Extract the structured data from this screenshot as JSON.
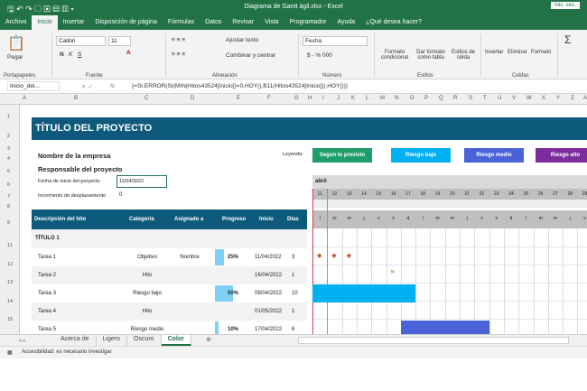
{
  "titlebar": {
    "title": "Diagrama de Gantt ágil.xlsx  -  Excel",
    "signin": "Inic. ses."
  },
  "tabs": [
    "Archivo",
    "Inicio",
    "Insertar",
    "Disposición de página",
    "Fórmulas",
    "Datos",
    "Revisar",
    "Vista",
    "Programador",
    "Ayuda",
    "¿Qué desea hacer?"
  ],
  "ribbon": {
    "paste": "Pegar",
    "font": "Calibri",
    "size": "11",
    "wrap": "Ajustar texto",
    "merge": "Combinar y centrar",
    "format": "Fecha",
    "cond": "Formato condicional",
    "table": "Dar formato como tabla",
    "styles": "Estilos de celda",
    "insert": "Insertar",
    "delete": "Eliminar",
    "fmt": "Formato",
    "groups": [
      "Portapapeles",
      "Fuente",
      "Alineación",
      "Número",
      "Estilos",
      "Celdas"
    ],
    "bold": "N",
    "italic": "K",
    "underline": "S",
    "numfmt": "$ - % 000"
  },
  "formula": {
    "namebox": "Inicio_del...",
    "fx": "fx",
    "value": "{=SI.ERROR(SI(MIN(Hitos43524[Inicio])=0,HOY(),B11(Hitos43524[Inicio])),HOY())}"
  },
  "columns": [
    "A",
    "B",
    "C",
    "D",
    "E",
    "F",
    "G",
    "H",
    "I",
    "J",
    "K",
    "L",
    "M",
    "N",
    "O",
    "P",
    "Q",
    "R",
    "S",
    "T",
    "U",
    "V",
    "W",
    "X",
    "Y",
    "Z",
    "A"
  ],
  "rows": [
    "1",
    "2",
    "3",
    "4",
    "5",
    "6",
    "7",
    "8",
    "9",
    "11",
    "12",
    "13",
    "14",
    "15"
  ],
  "sheet": {
    "title": "TÍTULO DEL PROYECTO",
    "company": "Nombre de la empresa",
    "manager": "Responsable del proyecto",
    "start_label": "Fecha de inicio del proyecto",
    "start_value": "11/04/2022",
    "inc_label": "Incremento de desplazamiento",
    "inc_value": "0",
    "legend_label": "Leyenda:",
    "legend": [
      {
        "label": "Según lo previsto",
        "color": "#1e9e6a"
      },
      {
        "label": "Riesgo bajo",
        "color": "#00b0f0"
      },
      {
        "label": "Riesgo medio",
        "color": "#4a62d8"
      },
      {
        "label": "Riesgo alto",
        "color": "#7b2d9e"
      }
    ],
    "headers": [
      "Descripción del hito",
      "Categoría",
      "Asignado a",
      "Progreso",
      "Inicio",
      "Días"
    ],
    "section": "TÍTULO 1",
    "tasks": [
      {
        "name": "Tarea 1",
        "cat": "Objetivo",
        "who": "Nombre",
        "prog": "25%",
        "pv": 25,
        "start": "11/04/2022",
        "days": "3"
      },
      {
        "name": "Tarea 2",
        "cat": "Hito",
        "who": "",
        "prog": "",
        "pv": 0,
        "start": "16/04/2022",
        "days": "1"
      },
      {
        "name": "Tarea 3",
        "cat": "Riesgo bajo",
        "who": "",
        "prog": "50%",
        "pv": 50,
        "start": "08/04/2022",
        "days": "10"
      },
      {
        "name": "Tarea 4",
        "cat": "Hito",
        "who": "",
        "prog": "",
        "pv": 0,
        "start": "01/05/2022",
        "days": "1"
      },
      {
        "name": "Tarea 5",
        "cat": "Riesgo medio",
        "who": "",
        "prog": "10%",
        "pv": 10,
        "start": "17/04/2022",
        "days": "6"
      }
    ],
    "month": "abril",
    "days": [
      "11",
      "12",
      "13",
      "14",
      "15",
      "16",
      "17",
      "18",
      "19",
      "20",
      "21",
      "22",
      "23",
      "24",
      "25",
      "26",
      "27",
      "28",
      "29"
    ],
    "weekdays": [
      "l",
      "m",
      "m",
      "j",
      "v",
      "s",
      "d",
      "l",
      "m",
      "m",
      "j",
      "v",
      "s",
      "d",
      "l",
      "m",
      "m",
      "j",
      "v"
    ]
  },
  "sheettabs": [
    "Acerca de",
    "Ligero",
    "Oscuro",
    "Color"
  ],
  "active_sheet": "Color",
  "status": "Accesibilidad: es necesario investigar"
}
